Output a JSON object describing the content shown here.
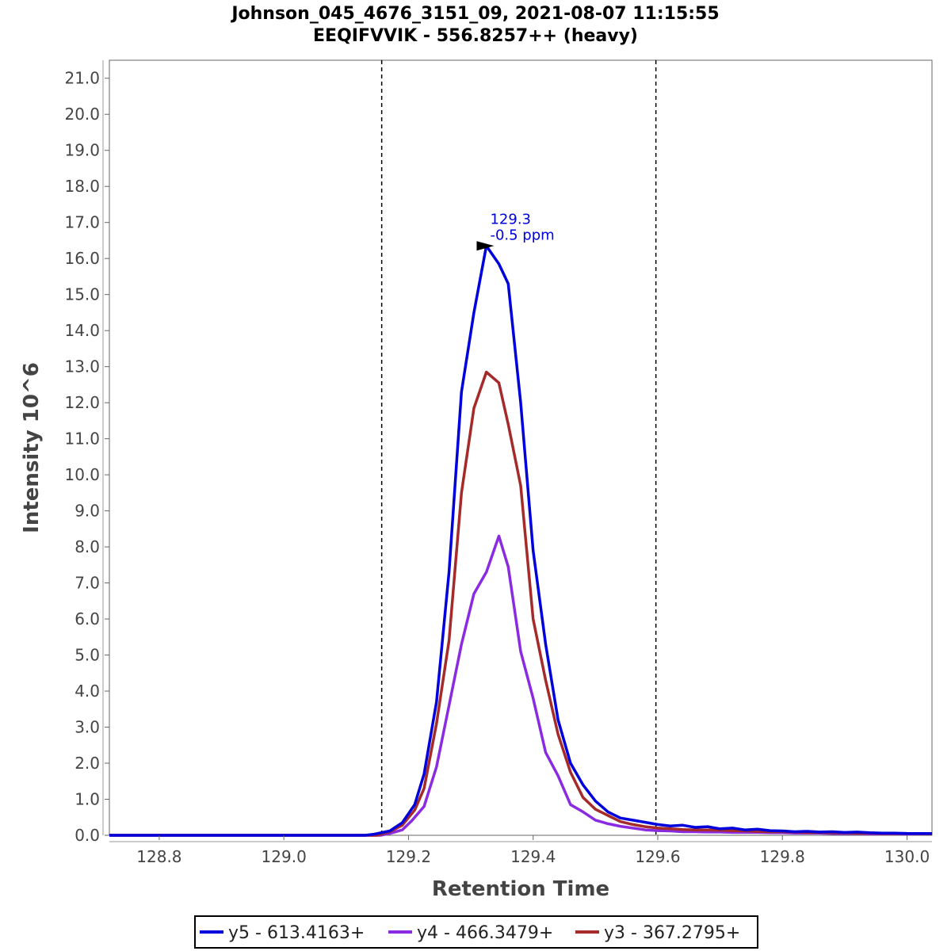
{
  "title_line1": "Johnson_045_4676_3151_09, 2021-08-07 11:15:55",
  "title_line2": "EEQIFVVIK - 556.8257++ (heavy)",
  "chart_data": {
    "type": "line",
    "title": "Johnson_045_4676_3151_09, 2021-08-07 11:15:55 EEQIFVVIK - 556.8257++ (heavy)",
    "xlabel": "Retention Time",
    "ylabel": "Intensity 10^6",
    "xlim": [
      128.72,
      130.04
    ],
    "ylim": [
      0,
      21.5
    ],
    "x_ticks": [
      "128.8",
      "129.0",
      "129.2",
      "129.4",
      "129.6",
      "129.8",
      "130.0"
    ],
    "y_ticks": [
      "0.0",
      "1.0",
      "2.0",
      "3.0",
      "4.0",
      "5.0",
      "6.0",
      "7.0",
      "8.0",
      "9.0",
      "10.0",
      "11.0",
      "12.0",
      "13.0",
      "14.0",
      "15.0",
      "16.0",
      "17.0",
      "18.0",
      "19.0",
      "20.0",
      "21.0"
    ],
    "grid": false,
    "legend_position": "bottom",
    "boundaries": [
      129.157,
      129.597
    ],
    "annotation": {
      "x": 129.345,
      "y": 16.35,
      "line1": "129.3",
      "line2": "-0.5 ppm",
      "color": "#0000dd"
    },
    "series": [
      {
        "name": "y5 - 613.4163+",
        "color": "#0000dd",
        "x": [
          128.72,
          129.13,
          129.145,
          129.17,
          129.19,
          129.21,
          129.225,
          129.245,
          129.265,
          129.285,
          129.305,
          129.325,
          129.345,
          129.36,
          129.38,
          129.4,
          129.42,
          129.44,
          129.46,
          129.48,
          129.5,
          129.52,
          129.54,
          129.56,
          129.58,
          129.6,
          129.62,
          129.64,
          129.66,
          129.68,
          129.7,
          129.72,
          129.74,
          129.76,
          129.78,
          129.8,
          129.82,
          129.84,
          129.86,
          129.88,
          129.9,
          129.92,
          129.94,
          129.96,
          129.98,
          130.0,
          130.04
        ],
        "y": [
          0,
          0,
          0.03,
          0.12,
          0.35,
          0.85,
          1.7,
          3.7,
          7.3,
          12.3,
          14.5,
          16.35,
          15.85,
          15.3,
          12.0,
          7.9,
          5.3,
          3.2,
          2.0,
          1.4,
          0.95,
          0.65,
          0.48,
          0.42,
          0.36,
          0.3,
          0.26,
          0.28,
          0.22,
          0.24,
          0.18,
          0.2,
          0.15,
          0.17,
          0.13,
          0.12,
          0.1,
          0.11,
          0.09,
          0.1,
          0.08,
          0.09,
          0.07,
          0.06,
          0.06,
          0.05,
          0.05
        ]
      },
      {
        "name": "y4 - 466.3479+",
        "color": "#8a2be2",
        "x": [
          128.72,
          129.155,
          129.17,
          129.19,
          129.205,
          129.225,
          129.245,
          129.265,
          129.285,
          129.305,
          129.325,
          129.345,
          129.36,
          129.38,
          129.4,
          129.42,
          129.44,
          129.46,
          129.48,
          129.5,
          129.52,
          129.54,
          129.56,
          129.58,
          129.6,
          129.62,
          129.64,
          129.66,
          129.68,
          129.7,
          129.72,
          129.74,
          129.76,
          129.78,
          129.8,
          129.82,
          129.84,
          129.86,
          129.88,
          129.9,
          129.92,
          129.94,
          129.96,
          129.98,
          130.0,
          130.04
        ],
        "y": [
          0,
          0,
          0.05,
          0.15,
          0.4,
          0.8,
          1.9,
          3.6,
          5.3,
          6.7,
          7.3,
          8.3,
          7.45,
          5.1,
          3.8,
          2.3,
          1.65,
          0.85,
          0.65,
          0.42,
          0.32,
          0.25,
          0.2,
          0.15,
          0.13,
          0.12,
          0.1,
          0.1,
          0.09,
          0.09,
          0.08,
          0.08,
          0.08,
          0.07,
          0.07,
          0.06,
          0.06,
          0.06,
          0.05,
          0.05,
          0.05,
          0.04,
          0.04,
          0.04,
          0.04,
          0.04
        ]
      },
      {
        "name": "y3 - 367.2795+",
        "color": "#a52a2a",
        "x": [
          128.72,
          129.15,
          129.17,
          129.19,
          129.21,
          129.225,
          129.245,
          129.265,
          129.285,
          129.305,
          129.325,
          129.345,
          129.36,
          129.38,
          129.4,
          129.42,
          129.44,
          129.46,
          129.48,
          129.5,
          129.52,
          129.54,
          129.56,
          129.58,
          129.6,
          129.62,
          129.64,
          129.66,
          129.68,
          129.7,
          129.72,
          129.74,
          129.76,
          129.78,
          129.8,
          129.82,
          129.84,
          129.86,
          129.88,
          129.9,
          129.92,
          129.94,
          129.96,
          129.98,
          130.0,
          130.04
        ],
        "y": [
          0,
          0,
          0.1,
          0.28,
          0.7,
          1.3,
          3.1,
          5.4,
          9.5,
          11.85,
          12.85,
          12.55,
          11.4,
          9.7,
          6.0,
          4.3,
          2.8,
          1.75,
          1.05,
          0.72,
          0.55,
          0.38,
          0.3,
          0.24,
          0.2,
          0.18,
          0.16,
          0.15,
          0.15,
          0.14,
          0.13,
          0.12,
          0.11,
          0.1,
          0.1,
          0.09,
          0.08,
          0.08,
          0.07,
          0.07,
          0.06,
          0.06,
          0.05,
          0.05,
          0.05,
          0.04
        ]
      }
    ]
  }
}
